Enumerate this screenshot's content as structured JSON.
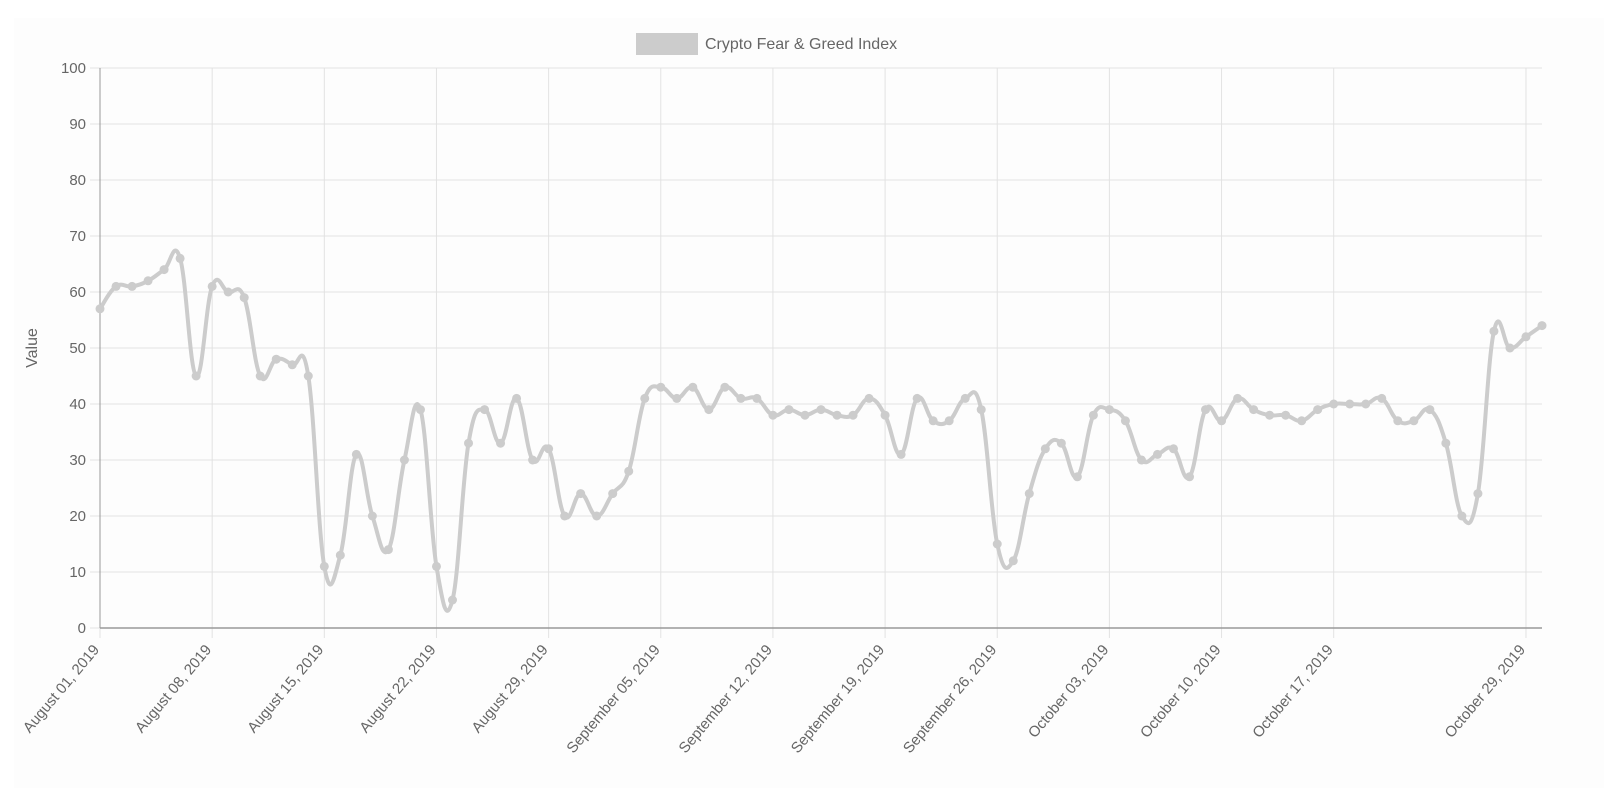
{
  "chart_data": {
    "type": "line",
    "legend": {
      "label": "Crypto Fear & Greed Index",
      "position": "top-center"
    },
    "ylabel": "Value",
    "xlabel": "",
    "ylim": [
      0,
      100
    ],
    "yticks": [
      0,
      10,
      20,
      30,
      40,
      50,
      60,
      70,
      80,
      90,
      100
    ],
    "grid": true,
    "colors": {
      "line": "#cccccc",
      "grid": "#e2e2e2",
      "axis": "#999999",
      "text": "#666666"
    },
    "x_start": "2019-08-01",
    "xtick_labels": [
      {
        "day": 0,
        "label": "August 01, 2019"
      },
      {
        "day": 7,
        "label": "August 08, 2019"
      },
      {
        "day": 14,
        "label": "August 15, 2019"
      },
      {
        "day": 21,
        "label": "August 22, 2019"
      },
      {
        "day": 28,
        "label": "August 29, 2019"
      },
      {
        "day": 35,
        "label": "September 05, 2019"
      },
      {
        "day": 42,
        "label": "September 12, 2019"
      },
      {
        "day": 49,
        "label": "September 19, 2019"
      },
      {
        "day": 56,
        "label": "September 26, 2019"
      },
      {
        "day": 63,
        "label": "October 03, 2019"
      },
      {
        "day": 70,
        "label": "October 10, 2019"
      },
      {
        "day": 77,
        "label": "October 17, 2019"
      },
      {
        "day": 89,
        "label": "October 29, 2019"
      }
    ],
    "series": [
      {
        "name": "Crypto Fear & Greed Index",
        "values": [
          57,
          61,
          61,
          62,
          64,
          66,
          45,
          61,
          60,
          59,
          45,
          48,
          47,
          45,
          11,
          13,
          31,
          20,
          14,
          30,
          39,
          11,
          5,
          33,
          39,
          33,
          41,
          30,
          32,
          20,
          24,
          20,
          24,
          28,
          41,
          43,
          41,
          43,
          39,
          43,
          41,
          41,
          38,
          39,
          38,
          39,
          38,
          38,
          41,
          38,
          31,
          41,
          37,
          37,
          41,
          39,
          15,
          12,
          24,
          32,
          33,
          27,
          38,
          39,
          37,
          30,
          31,
          32,
          27,
          39,
          37,
          41,
          39,
          38,
          38,
          37,
          39,
          40,
          40,
          40,
          41,
          37,
          37,
          39,
          33,
          20,
          24,
          53,
          50,
          52,
          54
        ]
      }
    ]
  }
}
